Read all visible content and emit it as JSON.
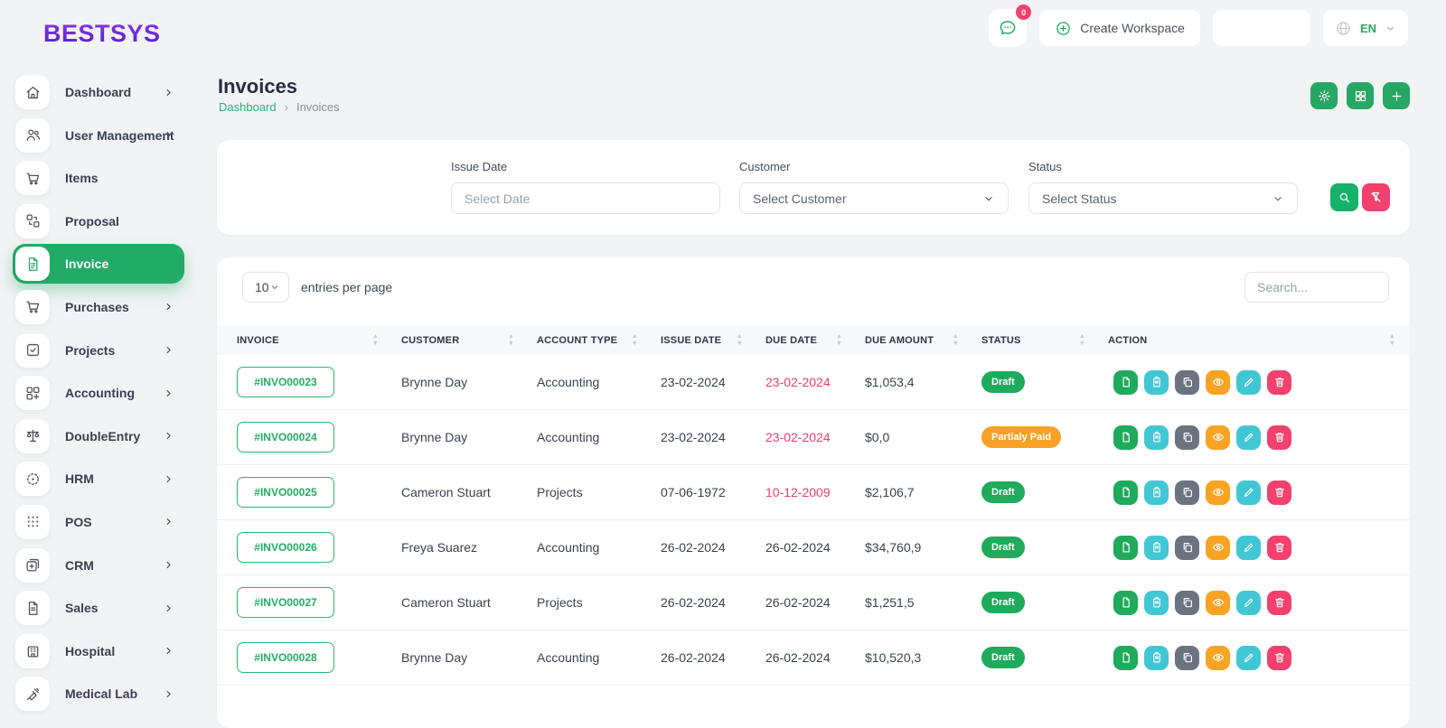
{
  "brand": {
    "name": "BESTSYS"
  },
  "topbar": {
    "chat": {
      "icon": "chat-icon",
      "badge": "0"
    },
    "create_workspace": {
      "icon": "plus-circle-icon",
      "label": "Create Workspace"
    },
    "language": {
      "icon": "globe-icon",
      "value": "EN"
    }
  },
  "sidebar": {
    "items": [
      {
        "label": "Dashboard",
        "icon": "home-icon",
        "chevron": true,
        "active": false
      },
      {
        "label": "User Management",
        "icon": "users-icon",
        "chevron": true,
        "active": false
      },
      {
        "label": "Items",
        "icon": "cart-icon",
        "chevron": false,
        "active": false
      },
      {
        "label": "Proposal",
        "icon": "proposal-icon",
        "chevron": false,
        "active": false
      },
      {
        "label": "Invoice",
        "icon": "invoice-icon",
        "chevron": false,
        "active": true
      },
      {
        "label": "Purchases",
        "icon": "cart-icon",
        "chevron": true,
        "active": false
      },
      {
        "label": "Projects",
        "icon": "checkbox-icon",
        "chevron": true,
        "active": false
      },
      {
        "label": "Accounting",
        "icon": "grid-plus-icon",
        "chevron": true,
        "active": false
      },
      {
        "label": "DoubleEntry",
        "icon": "scale-icon",
        "chevron": true,
        "active": false
      },
      {
        "label": "HRM",
        "icon": "target-icon",
        "chevron": true,
        "active": false
      },
      {
        "label": "POS",
        "icon": "dots-grid-icon",
        "chevron": true,
        "active": false
      },
      {
        "label": "CRM",
        "icon": "crm-icon",
        "chevron": true,
        "active": false
      },
      {
        "label": "Sales",
        "icon": "document-icon",
        "chevron": true,
        "active": false
      },
      {
        "label": "Hospital",
        "icon": "hospital-icon",
        "chevron": true,
        "active": false
      },
      {
        "label": "Medical Lab",
        "icon": "syringe-icon",
        "chevron": true,
        "active": false
      }
    ]
  },
  "page": {
    "title": "Invoices",
    "breadcrumb": {
      "parent": "Dashboard",
      "current": "Invoices"
    },
    "header_actions": [
      {
        "name": "settings-button",
        "icon": "gear-icon"
      },
      {
        "name": "grid-view-button",
        "icon": "grid-icon"
      },
      {
        "name": "add-invoice-button",
        "icon": "plus-icon"
      }
    ]
  },
  "filters": {
    "issue_date": {
      "label": "Issue Date",
      "placeholder": "Select Date"
    },
    "customer": {
      "label": "Customer",
      "value": "Select Customer"
    },
    "status": {
      "label": "Status",
      "value": "Select Status"
    },
    "buttons": [
      {
        "name": "apply-filter-button",
        "icon": "search-icon",
        "color": "#17b26a"
      },
      {
        "name": "reset-filter-button",
        "icon": "filter-off-icon",
        "color": "#f1416c"
      }
    ]
  },
  "table": {
    "page_size": "10",
    "entries_label": "entries per page",
    "search_placeholder": "Search...",
    "columns": [
      "INVOICE",
      "CUSTOMER",
      "ACCOUNT TYPE",
      "ISSUE DATE",
      "DUE DATE",
      "DUE AMOUNT",
      "STATUS",
      "ACTION"
    ],
    "row_actions": [
      {
        "name": "file-button",
        "icon": "file-icon",
        "color": "#1faa5c"
      },
      {
        "name": "clipboard-button",
        "icon": "clipboard-icon",
        "color": "#41c7d4"
      },
      {
        "name": "copy-button",
        "icon": "copy-icon",
        "color": "#6b7280"
      },
      {
        "name": "view-button",
        "icon": "eye-icon",
        "color": "#f9a324"
      },
      {
        "name": "edit-button",
        "icon": "pencil-icon",
        "color": "#41c7d4"
      },
      {
        "name": "delete-button",
        "icon": "trash-icon",
        "color": "#f1416c"
      }
    ],
    "status_styles": {
      "draft": "#1faa5c",
      "partial": "#f7a127"
    },
    "rows": [
      {
        "invoice": "#INVO00023",
        "customer": "Brynne Day",
        "account_type": "Accounting",
        "issue_date": "23-02-2024",
        "due_date": "23-02-2024",
        "overdue": true,
        "due_amount": "$1,053,4",
        "status": "Draft",
        "status_type": "draft"
      },
      {
        "invoice": "#INVO00024",
        "customer": "Brynne Day",
        "account_type": "Accounting",
        "issue_date": "23-02-2024",
        "due_date": "23-02-2024",
        "overdue": true,
        "due_amount": "$0,0",
        "status": "Partialy Paid",
        "status_type": "partial"
      },
      {
        "invoice": "#INVO00025",
        "customer": "Cameron Stuart",
        "account_type": "Projects",
        "issue_date": "07-06-1972",
        "due_date": "10-12-2009",
        "overdue": true,
        "due_amount": "$2,106,7",
        "status": "Draft",
        "status_type": "draft"
      },
      {
        "invoice": "#INVO00026",
        "customer": "Freya Suarez",
        "account_type": "Accounting",
        "issue_date": "26-02-2024",
        "due_date": "26-02-2024",
        "overdue": false,
        "due_amount": "$34,760,9",
        "status": "Draft",
        "status_type": "draft"
      },
      {
        "invoice": "#INVO00027",
        "customer": "Cameron Stuart",
        "account_type": "Projects",
        "issue_date": "26-02-2024",
        "due_date": "26-02-2024",
        "overdue": false,
        "due_amount": "$1,251,5",
        "status": "Draft",
        "status_type": "draft"
      },
      {
        "invoice": "#INVO00028",
        "customer": "Brynne Day",
        "account_type": "Accounting",
        "issue_date": "26-02-2024",
        "due_date": "26-02-2024",
        "overdue": false,
        "due_amount": "$10,520,3",
        "status": "Draft",
        "status_type": "draft"
      }
    ]
  },
  "colors": {
    "accent_green": "#22ab67",
    "pink": "#f1416c",
    "orange": "#f7a127",
    "teal": "#41c7d4",
    "gray": "#6b7280",
    "overdue_red": "#ee3d6f",
    "logo_purple": "#6d28d9"
  }
}
